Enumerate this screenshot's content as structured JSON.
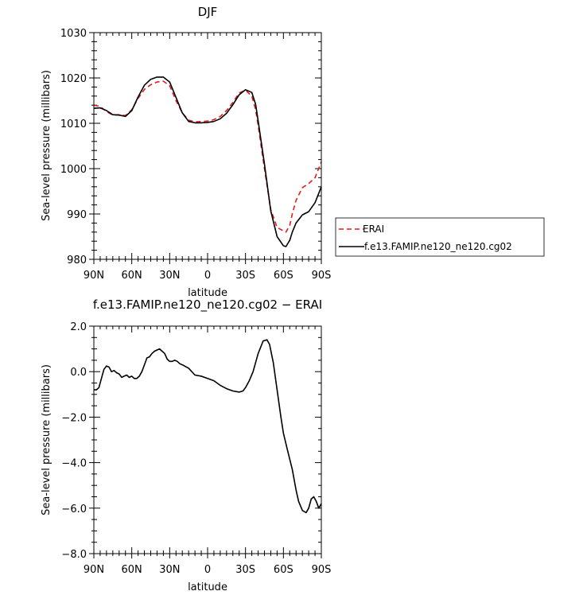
{
  "chart_data": [
    {
      "type": "line",
      "title": "DJF",
      "xlabel": "latitude",
      "ylabel": "Sea-level pressure (millibars)",
      "xlim": [
        90,
        -90
      ],
      "ylim": [
        980,
        1030
      ],
      "xticks": [
        90,
        60,
        30,
        0,
        -30,
        -60,
        -90
      ],
      "xtick_labels": [
        "90N",
        "60N",
        "30N",
        "0",
        "30S",
        "60S",
        "90S"
      ],
      "yticks": [
        980,
        990,
        1000,
        1010,
        1020,
        1030
      ],
      "ytick_labels": [
        "980",
        "990",
        "1000",
        "1010",
        "1020",
        "1030"
      ],
      "legend": {
        "placement": "right"
      },
      "series": [
        {
          "name": "ERAI",
          "color": "#e41a1c",
          "dash": "dashed",
          "x": [
            90,
            85,
            80,
            75,
            70,
            65,
            60,
            55,
            50,
            45,
            40,
            35,
            30,
            25,
            20,
            15,
            10,
            5,
            0,
            -5,
            -10,
            -15,
            -20,
            -25,
            -30,
            -35,
            -38,
            -40,
            -45,
            -50,
            -55,
            -60,
            -62,
            -65,
            -67,
            -70,
            -75,
            -80,
            -85,
            -90
          ],
          "values": [
            1014.0,
            1013.7,
            1012.6,
            1011.8,
            1011.9,
            1011.7,
            1013.0,
            1015.5,
            1017.5,
            1018.5,
            1019.1,
            1019.3,
            1018.3,
            1015.0,
            1012.3,
            1010.7,
            1010.3,
            1010.4,
            1010.5,
            1010.8,
            1011.5,
            1012.8,
            1014.6,
            1016.7,
            1017.3,
            1016.0,
            1013.0,
            1009.5,
            1000.0,
            991.0,
            987.0,
            986.3,
            986.0,
            987.5,
            990.0,
            993.0,
            995.8,
            996.7,
            998.0,
            1001.5
          ]
        },
        {
          "name": "f.e13.FAMIP.ne120_ne120.cg02",
          "color": "#000000",
          "dash": "solid",
          "x": [
            90,
            85,
            80,
            75,
            70,
            65,
            60,
            55,
            50,
            45,
            40,
            35,
            30,
            25,
            20,
            15,
            10,
            5,
            0,
            -5,
            -10,
            -15,
            -20,
            -25,
            -30,
            -35,
            -38,
            -40,
            -45,
            -50,
            -55,
            -60,
            -62,
            -65,
            -67,
            -70,
            -75,
            -80,
            -85,
            -90
          ],
          "values": [
            1013.3,
            1013.4,
            1012.8,
            1011.9,
            1011.8,
            1011.5,
            1012.8,
            1015.8,
            1018.4,
            1019.7,
            1020.2,
            1020.2,
            1019.1,
            1015.7,
            1012.3,
            1010.4,
            1010.1,
            1010.1,
            1010.2,
            1010.4,
            1011.0,
            1012.2,
            1014.1,
            1016.3,
            1017.4,
            1016.8,
            1014.2,
            1010.5,
            1001.0,
            990.7,
            985.0,
            983.0,
            982.8,
            984.2,
            986.0,
            988.0,
            989.8,
            990.5,
            992.5,
            996.0
          ]
        }
      ]
    },
    {
      "type": "line",
      "title": "f.e13.FAMIP.ne120_ne120.cg02 − ERAI",
      "xlabel": "latitude",
      "ylabel": "Sea-level pressure (millibars)",
      "xlim": [
        90,
        -90
      ],
      "ylim": [
        -8,
        2
      ],
      "xticks": [
        90,
        60,
        30,
        0,
        -30,
        -60,
        -90
      ],
      "xtick_labels": [
        "90N",
        "60N",
        "30N",
        "0",
        "30S",
        "60S",
        "90S"
      ],
      "yticks": [
        -8,
        -6,
        -4,
        -2,
        0,
        2
      ],
      "ytick_labels": [
        "−8.0",
        "−6.0",
        "−4.0",
        "−2.0",
        "0.0",
        "2.0"
      ],
      "series": [
        {
          "color": "#000000",
          "dash": "solid",
          "x": [
            90,
            88,
            86,
            84,
            82,
            80,
            78,
            76,
            74,
            72,
            70,
            68,
            66,
            64,
            62,
            60,
            58,
            56,
            54,
            52,
            50,
            48,
            46,
            44,
            42,
            40,
            38,
            36,
            34,
            32,
            30,
            28,
            26,
            24,
            22,
            20,
            15,
            10,
            5,
            0,
            -5,
            -10,
            -15,
            -20,
            -25,
            -28,
            -30,
            -33,
            -36,
            -40,
            -44,
            -47,
            -49,
            -52,
            -55,
            -58,
            -60,
            -63,
            -67,
            -70,
            -72,
            -75,
            -78,
            -80,
            -82,
            -84,
            -86,
            -88,
            -90
          ],
          "values": [
            -0.8,
            -0.8,
            -0.7,
            -0.3,
            0.1,
            0.25,
            0.2,
            0.0,
            0.05,
            -0.05,
            -0.1,
            -0.25,
            -0.2,
            -0.15,
            -0.25,
            -0.2,
            -0.3,
            -0.3,
            -0.2,
            0.0,
            0.3,
            0.6,
            0.65,
            0.8,
            0.9,
            0.95,
            1.0,
            0.9,
            0.8,
            0.55,
            0.45,
            0.45,
            0.5,
            0.45,
            0.35,
            0.3,
            0.15,
            -0.15,
            -0.2,
            -0.3,
            -0.4,
            -0.6,
            -0.75,
            -0.85,
            -0.9,
            -0.85,
            -0.7,
            -0.4,
            0.0,
            0.8,
            1.35,
            1.4,
            1.2,
            0.4,
            -0.8,
            -2.0,
            -2.7,
            -3.4,
            -4.3,
            -5.2,
            -5.7,
            -6.1,
            -6.2,
            -6.0,
            -5.6,
            -5.5,
            -5.7,
            -6.0,
            -5.8
          ]
        }
      ]
    }
  ]
}
